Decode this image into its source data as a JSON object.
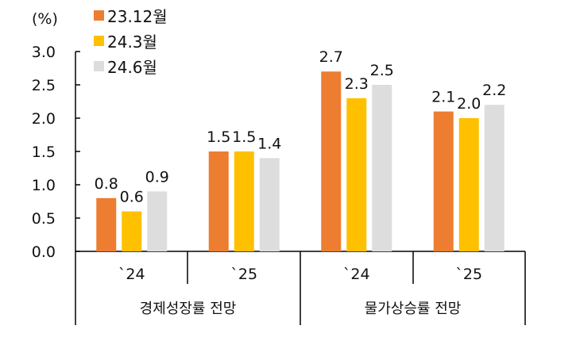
{
  "chart_data": {
    "type": "bar",
    "unit_label": "(%)",
    "ylim": [
      0,
      3.0
    ],
    "yticks": [
      "0.0",
      "0.5",
      "1.0",
      "1.5",
      "2.0",
      "2.5",
      "3.0"
    ],
    "categories": [
      "`24",
      "`25",
      "`24",
      "`25"
    ],
    "groups": [
      "경제성장률 전망",
      "물가상승률 전망"
    ],
    "series": [
      {
        "name": "23.12월",
        "color": "#ED7D31",
        "values": [
          0.8,
          1.5,
          2.7,
          2.1
        ]
      },
      {
        "name": "24.3월",
        "color": "#FFC000",
        "values": [
          0.6,
          1.5,
          2.3,
          2.0
        ]
      },
      {
        "name": "24.6월",
        "color": "#DDDDDD",
        "values": [
          0.9,
          1.4,
          2.5,
          2.2
        ]
      }
    ],
    "legend_position": "top-left"
  }
}
